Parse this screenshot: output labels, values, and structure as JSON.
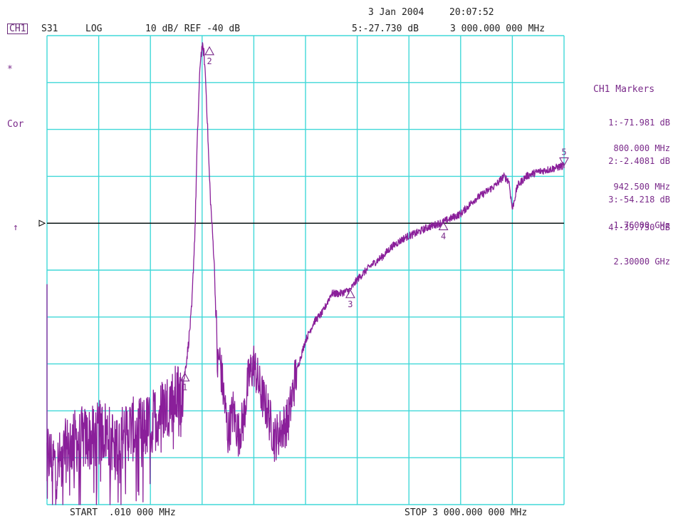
{
  "header": {
    "date": "3 Jan 2004",
    "time": "20:07:52",
    "channel": "CH1",
    "param": "S31",
    "format": "LOG",
    "scale": "10 dB/ REF -40 dB",
    "active_marker": "5:-27.730 dB",
    "active_marker_freq": "3 000.000 000 MHz"
  },
  "left_labels": {
    "star": "*",
    "cor": "Cor",
    "arrow": "↑"
  },
  "markers_panel": {
    "title": "CH1 Markers",
    "items": [
      {
        "level": "1:-71.981 dB",
        "freq": "800.000 MHz"
      },
      {
        "level": "2:-2.4081 dB",
        "freq": "942.500 MHz"
      },
      {
        "level": "3:-54.218 dB",
        "freq": "1.76000 GHz"
      },
      {
        "level": "4:-39.730 dB",
        "freq": "2.30000 GHz"
      }
    ]
  },
  "footer": {
    "start": "START  .010 000 MHz",
    "stop": "STOP 3 000.000 000 MHz"
  },
  "colors": {
    "grid": "#40d8d8",
    "trace": "#8a1f9a",
    "reference": "#000000",
    "text": "#222222",
    "marker_text": "#7a2a8a"
  },
  "chart_data": {
    "type": "line",
    "xlim": [
      0.01,
      3000
    ],
    "ylim": [
      -100,
      0
    ],
    "x_units": "MHz",
    "y_units": "dB",
    "reference_level": -40,
    "grid": true,
    "series": [
      {
        "x": [
          0.01,
          60,
          130,
          200,
          260,
          330,
          400,
          470,
          530,
          600,
          660,
          720,
          780,
          800,
          820,
          840,
          860,
          870,
          880,
          890,
          900,
          910,
          920,
          930,
          940,
          950,
          960,
          970,
          980,
          990,
          1000,
          1020,
          1050,
          1080,
          1110,
          1140,
          1170,
          1200,
          1240,
          1280,
          1320,
          1360,
          1400,
          1440,
          1460,
          1500,
          1550,
          1600,
          1650,
          1700,
          1760,
          1800,
          1880,
          1950,
          2000,
          2080,
          2150,
          2200,
          2300,
          2400,
          2480,
          2560,
          2600,
          2650,
          2680,
          2700,
          2730,
          2780,
          2850,
          2920,
          3000
        ],
        "values": [
          -89,
          -92,
          -87,
          -86,
          -86,
          -84,
          -87,
          -84,
          -84,
          -83,
          -80,
          -78,
          -76,
          -72,
          -66,
          -58,
          -40,
          -25,
          -14,
          -5,
          -2.4,
          -3.5,
          -9,
          -18,
          -28,
          -36,
          -42,
          -48,
          -60,
          -71,
          -68,
          -75,
          -85,
          -80,
          -85,
          -82,
          -73,
          -70,
          -76,
          -80,
          -86,
          -84,
          -82,
          -73,
          -70,
          -65,
          -61,
          -59,
          -55,
          -55,
          -54.2,
          -52,
          -49,
          -47,
          -45,
          -43,
          -42,
          -41,
          -39.7,
          -38,
          -35,
          -33,
          -32,
          -30,
          -31,
          -37,
          -32,
          -30,
          -29,
          -28.5,
          -27.7
        ]
      }
    ],
    "markers": [
      {
        "id": "1",
        "x": 800,
        "y": -71.981,
        "dir": "up"
      },
      {
        "id": "2",
        "x": 942.5,
        "y": -2.4081,
        "dir": "up"
      },
      {
        "id": "3",
        "x": 1760,
        "y": -54.218,
        "dir": "up"
      },
      {
        "id": "4",
        "x": 2300,
        "y": -39.73,
        "dir": "up"
      },
      {
        "id": "5",
        "x": 3000,
        "y": -27.73,
        "dir": "down"
      }
    ]
  }
}
